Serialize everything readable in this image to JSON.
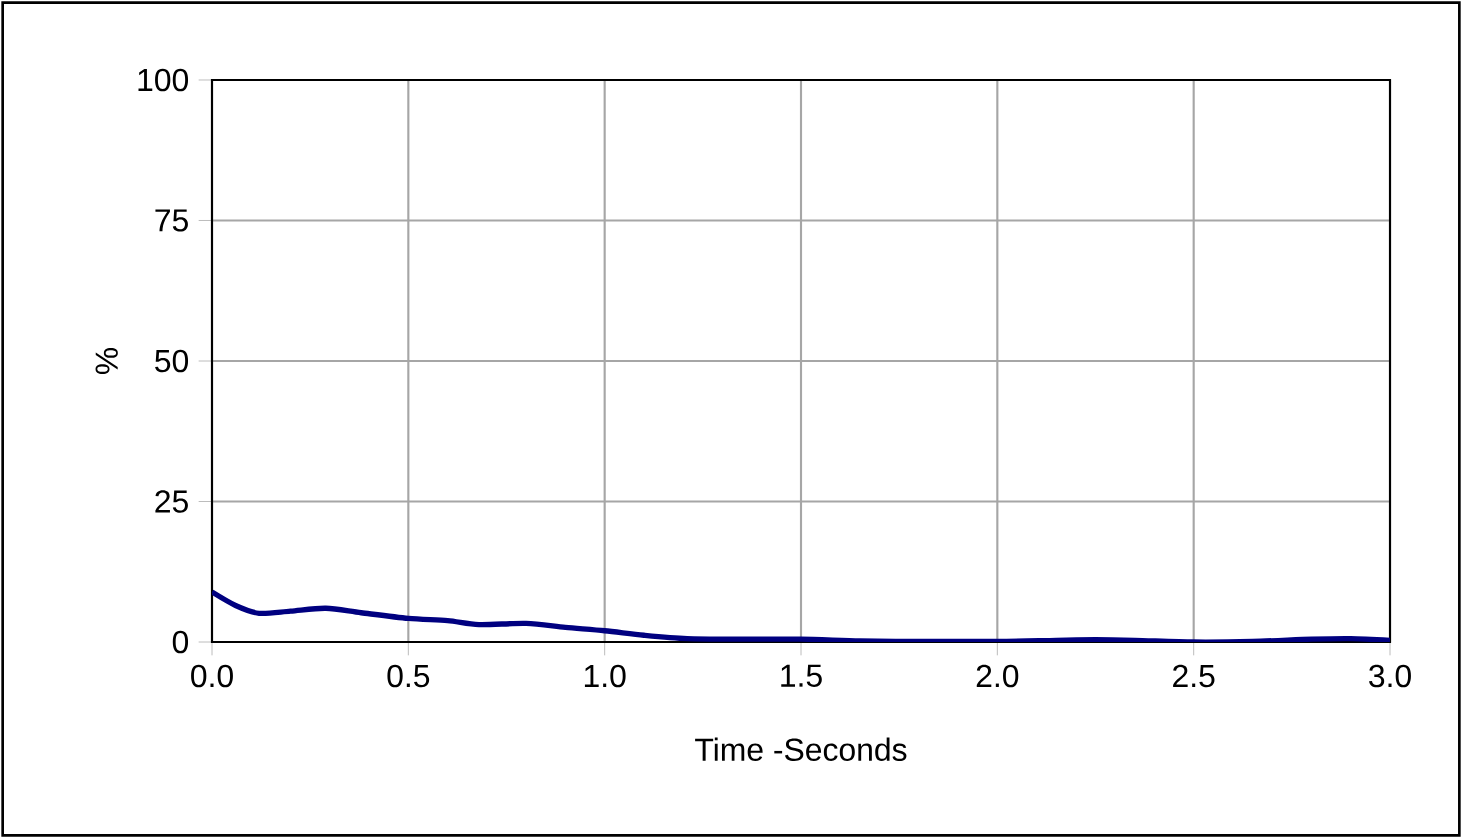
{
  "chart_data": {
    "type": "line",
    "xlabel": "Time -Seconds",
    "ylabel": "%",
    "x": [
      0,
      0.06,
      0.12,
      0.2,
      0.29,
      0.38,
      0.5,
      0.6,
      0.68,
      0.8,
      0.9,
      1.0,
      1.1,
      1.21,
      1.35,
      1.5,
      1.65,
      1.8,
      2.0,
      2.15,
      2.25,
      2.35,
      2.5,
      2.65,
      2.8,
      2.9,
      3.0
    ],
    "series": [
      {
        "color": "#000080",
        "values": [
          8.9,
          6.5,
          5.1,
          5.5,
          6.0,
          5.2,
          4.2,
          3.8,
          3.1,
          3.3,
          2.6,
          2.0,
          1.2,
          0.6,
          0.5,
          0.5,
          0.2,
          0.1,
          0.1,
          0.3,
          0.4,
          0.3,
          0.0,
          0.1,
          0.5,
          0.6,
          0.3
        ]
      }
    ],
    "xlim": [
      0,
      3
    ],
    "ylim": [
      0,
      100
    ],
    "xticks": [
      {
        "value": 0,
        "label": "0.0"
      },
      {
        "value": 0.5,
        "label": "0.5"
      },
      {
        "value": 1,
        "label": "1.0"
      },
      {
        "value": 1.5,
        "label": "1.5"
      },
      {
        "value": 2,
        "label": "2.0"
      },
      {
        "value": 2.5,
        "label": "2.5"
      },
      {
        "value": 3,
        "label": "3.0"
      }
    ],
    "yticks": [
      0,
      25,
      50,
      75,
      100
    ],
    "grid": true,
    "marker": "none",
    "line_style": "solid"
  }
}
